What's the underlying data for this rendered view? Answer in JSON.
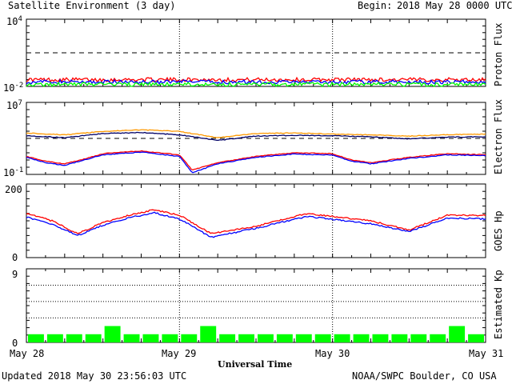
{
  "header": {
    "title": "Satellite Environment (3 day)",
    "begin_label": "Begin:",
    "begin_value": "2018 May 28 0000 UTC"
  },
  "footer": {
    "updated": "Updated 2018 May 30 23:56:03 UTC",
    "credit": "NOAA/SWPC Boulder, CO USA",
    "xlabel": "Universal Time"
  },
  "x_ticks": [
    "May 28",
    "May 29",
    "May 30",
    "May 31"
  ],
  "colors": {
    "red": "#ff0000",
    "blue": "#0000ff",
    "green": "#00ff00",
    "orange": "#ff9900",
    "navy": "#000066"
  },
  "chart_data": [
    {
      "type": "line",
      "ylabel": "Proton Flux",
      "scale": "log",
      "ylim": [
        0.01,
        10000
      ],
      "tick_labels": {
        "top": "10",
        "top_exp": "4",
        "bottom": "10",
        "bottom_exp": "-2"
      },
      "threshold": 10,
      "series": [
        {
          "color": "red",
          "level": 0.04
        },
        {
          "color": "blue",
          "level": 0.025
        },
        {
          "color": "green",
          "level": 0.015
        }
      ]
    },
    {
      "type": "line",
      "ylabel": "Electron Flux",
      "scale": "log",
      "ylim": [
        0.1,
        10000000
      ],
      "tick_labels": {
        "top": "10",
        "top_exp": "7",
        "bottom": "10",
        "bottom_exp": "-1"
      },
      "threshold": 1000,
      "series": [
        {
          "color": "orange",
          "x": [
            0,
            6,
            12,
            18,
            24,
            30,
            36,
            42,
            48,
            54,
            60,
            66,
            72
          ],
          "y": [
            4000,
            2500,
            6000,
            9000,
            6000,
            1200,
            3500,
            4000,
            3000,
            2500,
            1800,
            2600,
            3000
          ]
        },
        {
          "color": "navy",
          "x": [
            0,
            6,
            12,
            18,
            24,
            30,
            36,
            42,
            48,
            54,
            60,
            66,
            72
          ],
          "y": [
            2000,
            1200,
            3500,
            4500,
            2500,
            600,
            1800,
            2200,
            2000,
            1500,
            900,
            1400,
            1500
          ]
        },
        {
          "color": "red",
          "x": [
            0,
            3,
            6,
            9,
            12,
            18,
            24,
            26,
            30,
            36,
            42,
            48,
            51,
            54,
            60,
            66,
            72
          ],
          "y": [
            10,
            3,
            1.5,
            5,
            20,
            40,
            15,
            0.3,
            2,
            10,
            25,
            20,
            4,
            2,
            8,
            20,
            15
          ]
        },
        {
          "color": "blue",
          "x": [
            0,
            3,
            6,
            9,
            12,
            18,
            24,
            26,
            30,
            36,
            42,
            48,
            51,
            54,
            60,
            66,
            72
          ],
          "y": [
            8,
            2,
            1,
            4,
            15,
            30,
            10,
            0.15,
            1.5,
            8,
            18,
            14,
            3,
            1.5,
            6,
            15,
            12
          ]
        }
      ]
    },
    {
      "type": "line",
      "ylabel": "GOES Hp",
      "scale": "linear",
      "ylim": [
        0,
        200
      ],
      "tick_labels": {
        "top": "200",
        "bottom": "0"
      },
      "series": [
        {
          "color": "red",
          "x": [
            0,
            4,
            8,
            12,
            16,
            20,
            24,
            29,
            36,
            44,
            54,
            60,
            66,
            72
          ],
          "y": [
            120,
            100,
            65,
            95,
            115,
            130,
            115,
            65,
            85,
            120,
            100,
            75,
            115,
            115
          ]
        },
        {
          "color": "blue",
          "x": [
            0,
            4,
            8,
            12,
            16,
            20,
            24,
            29,
            36,
            44,
            54,
            60,
            66,
            72
          ],
          "y": [
            110,
            90,
            60,
            88,
            108,
            122,
            105,
            55,
            80,
            112,
            92,
            70,
            108,
            105
          ]
        }
      ]
    },
    {
      "type": "bar",
      "ylabel": "Estimated Kp",
      "ylim": [
        0,
        9
      ],
      "tick_labels": {
        "top": "9",
        "bottom": "0"
      },
      "values": [
        1,
        1,
        1,
        1,
        2,
        1,
        1,
        1,
        1,
        2,
        1,
        1,
        1,
        1,
        1,
        1,
        1,
        1,
        1,
        1,
        1,
        1,
        2,
        1
      ]
    }
  ]
}
